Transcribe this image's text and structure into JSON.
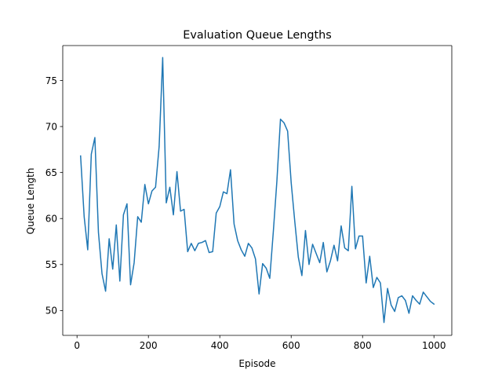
{
  "chart_data": {
    "type": "line",
    "title": "Evaluation Queue Lengths",
    "xlabel": "Episode",
    "ylabel": "Queue Length",
    "xlim": [
      -40,
      1050
    ],
    "ylim": [
      47.3,
      78.8
    ],
    "xticks": [
      0,
      200,
      400,
      600,
      800,
      1000
    ],
    "yticks": [
      50,
      55,
      60,
      65,
      70,
      75
    ],
    "grid": false,
    "legend": "none",
    "colors": {
      "line": "#1f77b4",
      "axes": "#000000",
      "background": "#ffffff"
    },
    "series": [
      {
        "x": [
          10,
          20,
          30,
          40,
          50,
          60,
          70,
          80,
          90,
          100,
          110,
          120,
          130,
          140,
          150,
          160,
          170,
          180,
          190,
          200,
          210,
          220,
          230,
          240,
          250,
          260,
          270,
          280,
          290,
          300,
          310,
          320,
          330,
          340,
          350,
          360,
          370,
          380,
          390,
          400,
          410,
          420,
          430,
          440,
          450,
          460,
          470,
          480,
          490,
          500,
          510,
          520,
          530,
          540,
          550,
          560,
          570,
          580,
          590,
          600,
          610,
          620,
          630,
          640,
          650,
          660,
          670,
          680,
          690,
          700,
          710,
          720,
          730,
          740,
          750,
          760,
          770,
          780,
          790,
          800,
          810,
          820,
          830,
          840,
          850,
          860,
          870,
          880,
          890,
          900,
          910,
          920,
          930,
          940,
          950,
          960,
          970,
          980,
          990,
          1000
        ],
        "y": [
          66.8,
          60.2,
          56.6,
          67.0,
          68.8,
          58.5,
          54.0,
          52.1,
          57.8,
          54.5,
          59.3,
          53.2,
          60.4,
          61.6,
          52.8,
          55.2,
          60.2,
          59.6,
          63.7,
          61.6,
          63.0,
          63.4,
          67.8,
          77.5,
          61.7,
          63.4,
          60.4,
          65.1,
          60.8,
          61.0,
          56.4,
          57.3,
          56.5,
          57.3,
          57.4,
          57.6,
          56.3,
          56.4,
          60.6,
          61.3,
          62.9,
          62.7,
          65.3,
          59.4,
          57.6,
          56.6,
          55.9,
          57.3,
          56.8,
          55.6,
          51.8,
          55.1,
          54.6,
          53.5,
          58.6,
          64.1,
          70.8,
          70.4,
          69.5,
          63.9,
          59.7,
          55.8,
          53.8,
          58.7,
          55.0,
          57.2,
          56.2,
          55.2,
          57.4,
          54.2,
          55.4,
          57.1,
          55.4,
          59.2,
          56.8,
          56.5,
          63.5,
          56.7,
          58.1,
          58.1,
          53.0,
          55.9,
          52.5,
          53.6,
          53.0,
          48.7,
          52.4,
          50.6,
          49.9,
          51.4,
          51.6,
          51.1,
          49.7,
          51.6,
          51.1,
          50.7,
          52.0,
          51.5,
          51.0,
          50.7
        ]
      }
    ]
  }
}
